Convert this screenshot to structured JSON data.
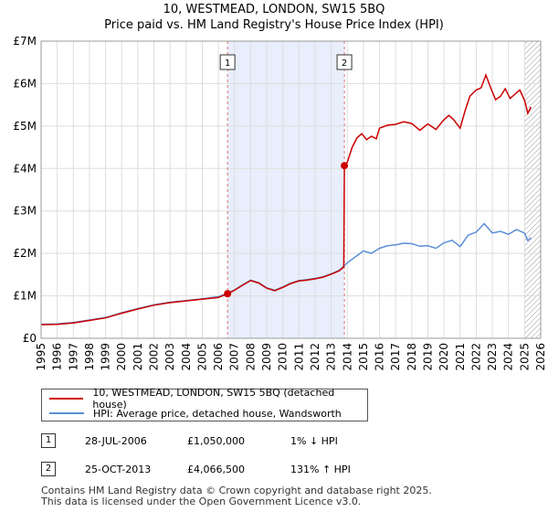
{
  "header": {
    "title_line1": "10, WESTMEAD, LONDON, SW15 5BQ",
    "title_line2": "Price paid vs. HM Land Registry's House Price Index (HPI)"
  },
  "chart_data": {
    "type": "line",
    "xlim": [
      1995,
      2026
    ],
    "ylim": [
      0,
      7000000
    ],
    "x_ticks": [
      "1995",
      "1996",
      "1997",
      "1998",
      "1999",
      "2000",
      "2001",
      "2002",
      "2003",
      "2004",
      "2005",
      "2006",
      "2007",
      "2008",
      "2009",
      "2010",
      "2011",
      "2012",
      "2013",
      "2014",
      "2015",
      "2016",
      "2017",
      "2018",
      "2019",
      "2020",
      "2021",
      "2022",
      "2023",
      "2024",
      "2025",
      "2026"
    ],
    "y_ticks": [
      {
        "value": 0,
        "label": "£0"
      },
      {
        "value": 1000000,
        "label": "£1M"
      },
      {
        "value": 2000000,
        "label": "£2M"
      },
      {
        "value": 3000000,
        "label": "£3M"
      },
      {
        "value": 4000000,
        "label": "£4M"
      },
      {
        "value": 5000000,
        "label": "£5M"
      },
      {
        "value": 6000000,
        "label": "£6M"
      },
      {
        "value": 7000000,
        "label": "£7M"
      }
    ],
    "shaded_period": [
      2006.57,
      2013.82
    ],
    "future_hatch_from": 2025.0,
    "series": [
      {
        "name": "10, WESTMEAD, LONDON, SW15 5BQ (detached house)",
        "color": "#cc0000",
        "points": [
          [
            1995,
            320000
          ],
          [
            1996,
            330000
          ],
          [
            1997,
            360000
          ],
          [
            1998,
            420000
          ],
          [
            1999,
            480000
          ],
          [
            2000,
            590000
          ],
          [
            2001,
            690000
          ],
          [
            2002,
            780000
          ],
          [
            2003,
            840000
          ],
          [
            2004,
            880000
          ],
          [
            2005,
            920000
          ],
          [
            2006.0,
            960000
          ],
          [
            2006.57,
            1050000
          ],
          [
            2007.0,
            1130000
          ],
          [
            2007.5,
            1250000
          ],
          [
            2008.0,
            1360000
          ],
          [
            2008.5,
            1300000
          ],
          [
            2009.0,
            1180000
          ],
          [
            2009.5,
            1120000
          ],
          [
            2010.0,
            1200000
          ],
          [
            2010.5,
            1290000
          ],
          [
            2011.0,
            1350000
          ],
          [
            2011.5,
            1370000
          ],
          [
            2012.0,
            1400000
          ],
          [
            2012.5,
            1440000
          ],
          [
            2013.0,
            1510000
          ],
          [
            2013.5,
            1590000
          ],
          [
            2013.78,
            1680000
          ],
          [
            2013.82,
            4066500
          ],
          [
            2014.0,
            4150000
          ],
          [
            2014.3,
            4500000
          ],
          [
            2014.6,
            4720000
          ],
          [
            2014.9,
            4820000
          ],
          [
            2015.2,
            4680000
          ],
          [
            2015.5,
            4760000
          ],
          [
            2015.8,
            4700000
          ],
          [
            2016.0,
            4950000
          ],
          [
            2016.5,
            5020000
          ],
          [
            2017.0,
            5040000
          ],
          [
            2017.5,
            5100000
          ],
          [
            2018.0,
            5060000
          ],
          [
            2018.5,
            4900000
          ],
          [
            2019.0,
            5050000
          ],
          [
            2019.5,
            4920000
          ],
          [
            2020.0,
            5150000
          ],
          [
            2020.3,
            5250000
          ],
          [
            2020.6,
            5150000
          ],
          [
            2021.0,
            4950000
          ],
          [
            2021.3,
            5350000
          ],
          [
            2021.6,
            5700000
          ],
          [
            2022.0,
            5850000
          ],
          [
            2022.3,
            5900000
          ],
          [
            2022.6,
            6200000
          ],
          [
            2022.9,
            5900000
          ],
          [
            2023.2,
            5620000
          ],
          [
            2023.5,
            5700000
          ],
          [
            2023.8,
            5880000
          ],
          [
            2024.1,
            5650000
          ],
          [
            2024.4,
            5750000
          ],
          [
            2024.7,
            5850000
          ],
          [
            2025.0,
            5600000
          ],
          [
            2025.2,
            5300000
          ],
          [
            2025.4,
            5450000
          ]
        ]
      },
      {
        "name": "HPI: Average price, detached house, Wandsworth",
        "color": "#5b8fd6",
        "points": [
          [
            1995,
            330000
          ],
          [
            1996,
            340000
          ],
          [
            1997,
            370000
          ],
          [
            1998,
            430000
          ],
          [
            1999,
            490000
          ],
          [
            2000,
            600000
          ],
          [
            2001,
            700000
          ],
          [
            2002,
            790000
          ],
          [
            2003,
            850000
          ],
          [
            2004,
            890000
          ],
          [
            2005,
            930000
          ],
          [
            2006.0,
            980000
          ],
          [
            2006.57,
            1060000
          ],
          [
            2007.0,
            1140000
          ],
          [
            2007.5,
            1260000
          ],
          [
            2008.0,
            1370000
          ],
          [
            2008.5,
            1310000
          ],
          [
            2009.0,
            1190000
          ],
          [
            2009.5,
            1130000
          ],
          [
            2010.0,
            1210000
          ],
          [
            2010.5,
            1300000
          ],
          [
            2011.0,
            1360000
          ],
          [
            2011.5,
            1380000
          ],
          [
            2012.0,
            1410000
          ],
          [
            2012.5,
            1450000
          ],
          [
            2013.0,
            1520000
          ],
          [
            2013.5,
            1600000
          ],
          [
            2014.0,
            1780000
          ],
          [
            2014.5,
            1920000
          ],
          [
            2015.0,
            2060000
          ],
          [
            2015.5,
            2000000
          ],
          [
            2016.0,
            2120000
          ],
          [
            2016.5,
            2180000
          ],
          [
            2017.0,
            2200000
          ],
          [
            2017.5,
            2240000
          ],
          [
            2018.0,
            2230000
          ],
          [
            2018.5,
            2170000
          ],
          [
            2019.0,
            2180000
          ],
          [
            2019.5,
            2120000
          ],
          [
            2020.0,
            2250000
          ],
          [
            2020.5,
            2310000
          ],
          [
            2021.0,
            2160000
          ],
          [
            2021.5,
            2430000
          ],
          [
            2022.0,
            2500000
          ],
          [
            2022.5,
            2700000
          ],
          [
            2023.0,
            2480000
          ],
          [
            2023.5,
            2520000
          ],
          [
            2024.0,
            2450000
          ],
          [
            2024.5,
            2560000
          ],
          [
            2025.0,
            2480000
          ],
          [
            2025.2,
            2300000
          ],
          [
            2025.4,
            2370000
          ]
        ]
      }
    ],
    "sale_markers": [
      {
        "label": "1",
        "x": 2006.57,
        "y": 1050000
      },
      {
        "label": "2",
        "x": 2013.82,
        "y": 4066500
      }
    ]
  },
  "legend": {
    "items": [
      {
        "label": "10, WESTMEAD, LONDON, SW15 5BQ (detached house)",
        "color": "#cc0000"
      },
      {
        "label": "HPI: Average price, detached house, Wandsworth",
        "color": "#5b8fd6"
      }
    ]
  },
  "sales": [
    {
      "num": "1",
      "date": "28-JUL-2006",
      "price": "£1,050,000",
      "hpi": "1% ↓ HPI"
    },
    {
      "num": "2",
      "date": "25-OCT-2013",
      "price": "£4,066,500",
      "hpi": "131% ↑ HPI"
    }
  ],
  "footer": {
    "line1": "Contains HM Land Registry data © Crown copyright and database right 2025.",
    "line2": "This data is licensed under the Open Government Licence v3.0."
  }
}
